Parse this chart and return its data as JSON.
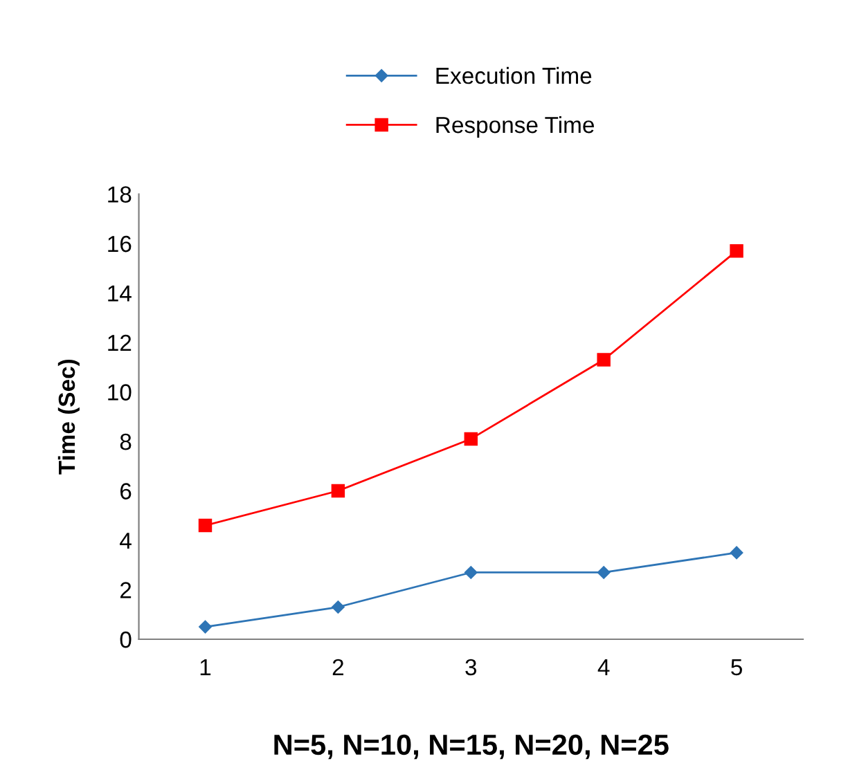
{
  "chart_data": {
    "type": "line",
    "xlabel": "N=5, N=10, N=15, N=20, N=25",
    "ylabel": "Time (Sec)",
    "categories": [
      "1",
      "2",
      "3",
      "4",
      "5"
    ],
    "series": [
      {
        "name": "Execution Time",
        "color": "#2e75b6",
        "marker": "diamond",
        "values": [
          0.5,
          1.3,
          2.7,
          2.7,
          3.5
        ]
      },
      {
        "name": "Response Time",
        "color": "#ff0000",
        "marker": "square",
        "values": [
          4.6,
          6.0,
          8.1,
          11.3,
          15.7
        ]
      }
    ],
    "ylim": [
      0,
      18
    ],
    "yticks": [
      0,
      2,
      4,
      6,
      8,
      10,
      12,
      14,
      16,
      18
    ],
    "grid": false,
    "legend": "top"
  }
}
